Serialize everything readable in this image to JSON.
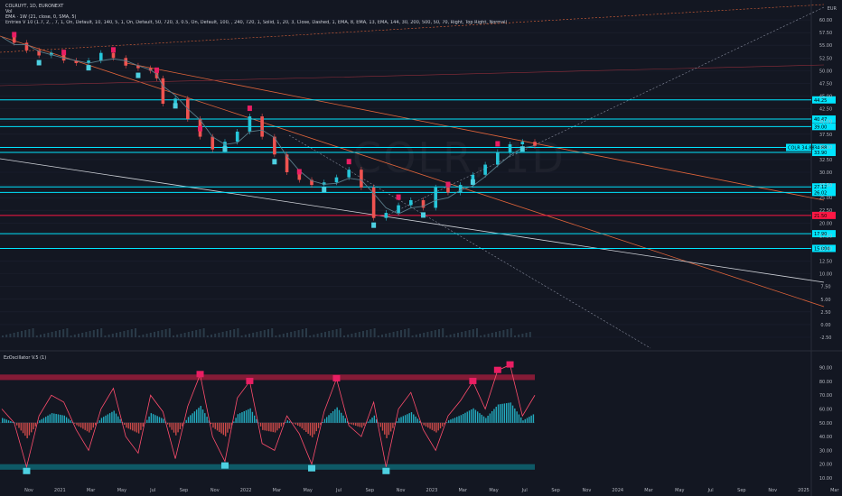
{
  "header": {
    "symbol_line": "COLRUYT, 1D, EURONEXT",
    "vol_line": "Vol",
    "ema_line": "EMA · 1W (21, close, 0, SMA, 5)",
    "indicator_line": "Entries V 10 (1.7, 2, , 7, 1, On, Default, 10, 140, 5, 1, On, Default, 50, 720, 3, 0.5, On, Default, 100, , 240, 720, 1, Solid, 1, 20, 3, Close, Dashed, 1, EMA, 8, EMA, 13, EMA, 144, 30, 200, 500, 50, 70, Right, Top Right, Normal)"
  },
  "currency": "EUR",
  "watermark": "COLR, 1D",
  "oscillator_title": "EzOscillator V.5 (1)",
  "colors": {
    "background": "#131722",
    "candle_up": "#26c6da",
    "candle_down": "#ef5350",
    "cyan_level": "#00e5ff",
    "red_level": "#ff1744",
    "bull_marker": "#4dd0e1",
    "bear_marker": "#e91e63",
    "ema_line": "#5a7d8a",
    "trend_orange": "#e0643a",
    "trend_white": "#cfd2d8",
    "osc_band_top": "#a11d3c",
    "osc_band_bottom": "#0e6a78"
  },
  "chart_data": [
    {
      "type": "line",
      "subtype": "candlestick-approximated",
      "title": "COLRUYT, 1D, EURONEXT",
      "x_labels": [
        "Nov",
        "2021",
        "Mar",
        "May",
        "Jul",
        "Sep",
        "Nov",
        "2022",
        "Mar",
        "May",
        "Jul",
        "Sep",
        "Nov",
        "2023",
        "Mar",
        "May",
        "Jul",
        "Sep",
        "Nov",
        "2024",
        "Mar",
        "May",
        "Jul",
        "Sep",
        "Nov",
        "2025",
        "Mar"
      ],
      "ylim": [
        -2.5,
        62.5
      ],
      "y_ticks": [
        60.0,
        57.5,
        55.0,
        52.5,
        50.0,
        47.5,
        45.0,
        42.5,
        40.0,
        37.5,
        35.0,
        32.5,
        30.0,
        27.5,
        25.0,
        22.5,
        20.0,
        17.5,
        15.0,
        12.5,
        10.0,
        7.5,
        5.0,
        2.5,
        0.0,
        -2.5
      ],
      "price_series": {
        "name": "COLR",
        "x": [
          0,
          2,
          4,
          6,
          8,
          10,
          12,
          14,
          16,
          18,
          20,
          22,
          24,
          25,
          26,
          28,
          30,
          32,
          34,
          36,
          38,
          40,
          42,
          44,
          46,
          48,
          50,
          52,
          54,
          56,
          58,
          60,
          62,
          64,
          66,
          68,
          70,
          72,
          74,
          76,
          78,
          80,
          82,
          84,
          86
        ],
        "y": [
          57.0,
          55.5,
          54.0,
          53.0,
          53.5,
          52.0,
          51.5,
          52.0,
          53.5,
          52.5,
          51.0,
          50.5,
          50.0,
          48.5,
          43.5,
          44.5,
          40.5,
          37.0,
          34.5,
          36.0,
          38.0,
          41.0,
          37.0,
          33.5,
          30.0,
          28.5,
          27.5,
          28.0,
          29.0,
          30.5,
          27.0,
          21.0,
          22.0,
          23.5,
          24.5,
          23.0,
          27.0,
          26.0,
          27.5,
          29.5,
          31.5,
          34.0,
          35.5,
          36.0,
          35.2
        ]
      },
      "horizontal_levels": [
        {
          "value": 44.25,
          "label": "44.25",
          "color": "#00e5ff"
        },
        {
          "value": 40.47,
          "label": "40.47",
          "color": "#00e5ff"
        },
        {
          "value": 39.0,
          "label": "39.00",
          "color": "#00e5ff"
        },
        {
          "value": 34.88,
          "label": "34.88",
          "color": "#00e5ff"
        },
        {
          "value": 33.9,
          "label": "33.90",
          "color": "#00e5ff"
        },
        {
          "value": 27.12,
          "label": "27.12",
          "color": "#00e5ff"
        },
        {
          "value": 26.02,
          "label": "26.02",
          "color": "#00e5ff"
        },
        {
          "value": 21.5,
          "label": "21.50",
          "color": "#ff1744"
        },
        {
          "value": 17.9,
          "label": "17.90",
          "color": "#00e5ff"
        },
        {
          "value": 15.0,
          "label": "15.000",
          "color": "#00e5ff"
        }
      ],
      "last_price_label": "COLR 34.88"
    },
    {
      "type": "line",
      "title": "EzOscillator V.5 (1)",
      "ylim": [
        10,
        95
      ],
      "y_ticks": [
        90.0,
        80.0,
        70.0,
        60.0,
        50.0,
        40.0,
        30.0,
        20.0,
        10.0
      ],
      "bands": [
        {
          "from": 81,
          "to": 85
        },
        {
          "from": 16,
          "to": 20
        }
      ],
      "series": [
        {
          "x": [
            0,
            2,
            4,
            6,
            8,
            10,
            12,
            14,
            16,
            18,
            20,
            22,
            24,
            26,
            28,
            30,
            32,
            34,
            36,
            38,
            40,
            42,
            44,
            46,
            48,
            50,
            52,
            54,
            56,
            58,
            60,
            62,
            64,
            66,
            68,
            70,
            72,
            74,
            76,
            78,
            80,
            82,
            84,
            86
          ],
          "values": [
            60,
            50,
            18,
            55,
            70,
            65,
            45,
            30,
            60,
            75,
            40,
            28,
            70,
            58,
            24,
            62,
            85,
            40,
            22,
            68,
            80,
            35,
            30,
            55,
            42,
            20,
            58,
            82,
            48,
            40,
            65,
            18,
            60,
            72,
            45,
            30,
            55,
            66,
            80,
            60,
            88,
            92,
            55,
            70
          ]
        }
      ]
    }
  ]
}
